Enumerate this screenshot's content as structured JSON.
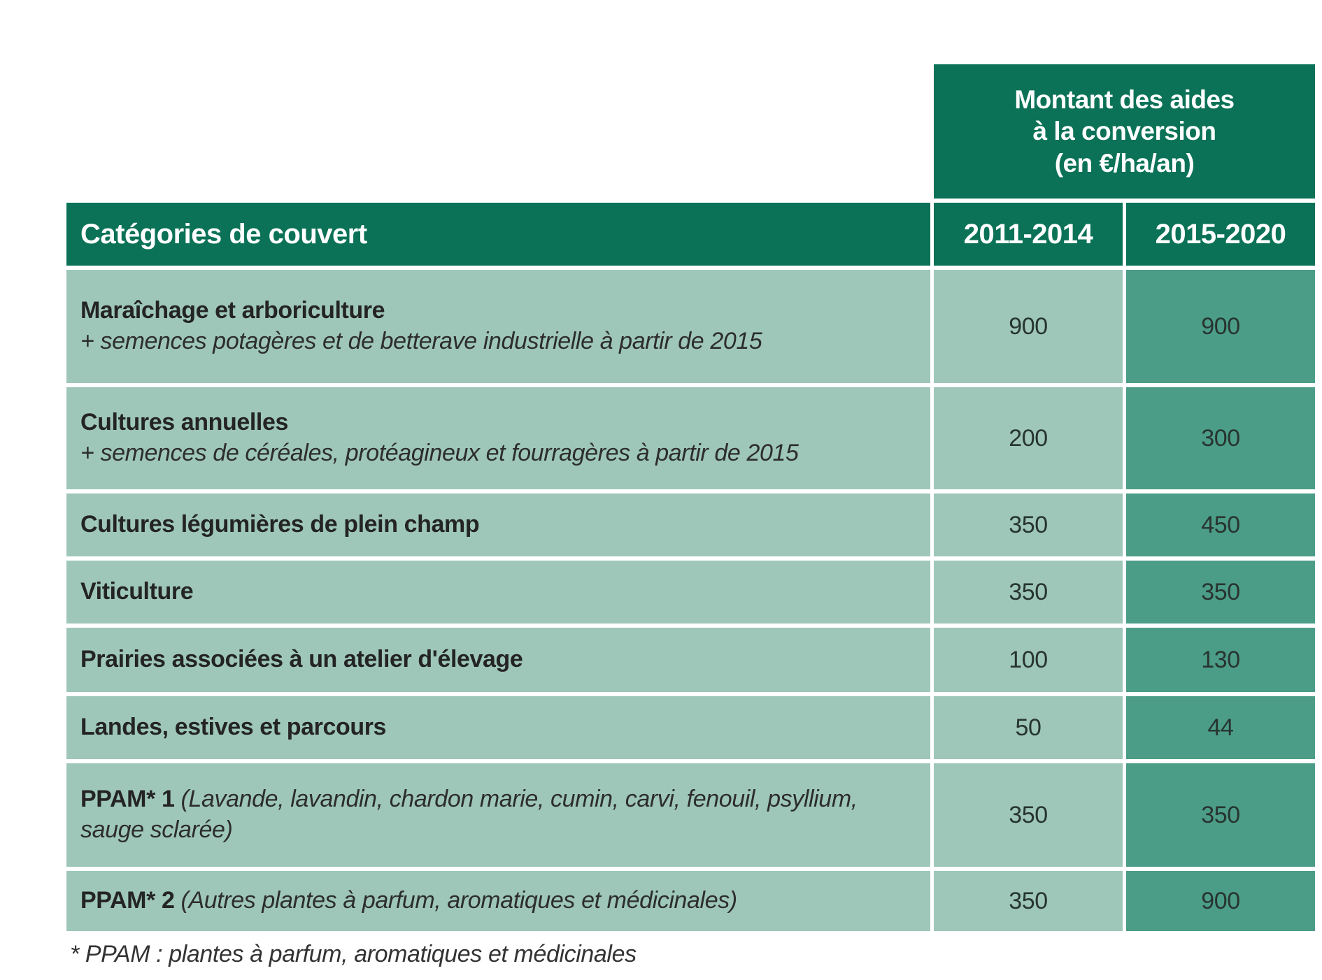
{
  "colors": {
    "header-green": "#0b7257",
    "row-light": "#9ec7ba",
    "col-teal": "#4c9d88"
  },
  "amount_header": {
    "line1": "Montant des aides",
    "line2": "à la conversion",
    "line3": "(en €/ha/an)"
  },
  "columns": {
    "category": "Catégories de couvert",
    "period1": "2011-2014",
    "period2": "2015-2020"
  },
  "rows": [
    {
      "name": "Maraîchage et arboriculture",
      "note": "+ semences potagères et de betterave industrielle à partir de 2015",
      "v2011": "900",
      "v2015": "900"
    },
    {
      "name": "Cultures annuelles",
      "note": "+ semences de céréales, protéagineux et fourragères à partir de 2015",
      "v2011": "200",
      "v2015": "300"
    },
    {
      "name": "Cultures légumières de plein champ",
      "note": "",
      "v2011": "350",
      "v2015": "450"
    },
    {
      "name": "Viticulture",
      "note": "",
      "v2011": "350",
      "v2015": "350"
    },
    {
      "name": "Prairies associées à un atelier d'élevage",
      "note": "",
      "v2011": "100",
      "v2015": "130"
    },
    {
      "name": "Landes, estives et parcours",
      "note": "",
      "v2011": "50",
      "v2015": "44"
    },
    {
      "name": "PPAM* 1",
      "note": "(Lavande, lavandin, chardon marie, cumin, carvi, fenouil, psyllium, sauge sclarée)",
      "v2011": "350",
      "v2015": "350"
    },
    {
      "name": "PPAM* 2",
      "note": "(Autres plantes à parfum, aromatiques et médicinales)",
      "v2011": "350",
      "v2015": "900"
    }
  ],
  "footnote": "* PPAM : plantes à parfum, aromatiques et médicinales"
}
